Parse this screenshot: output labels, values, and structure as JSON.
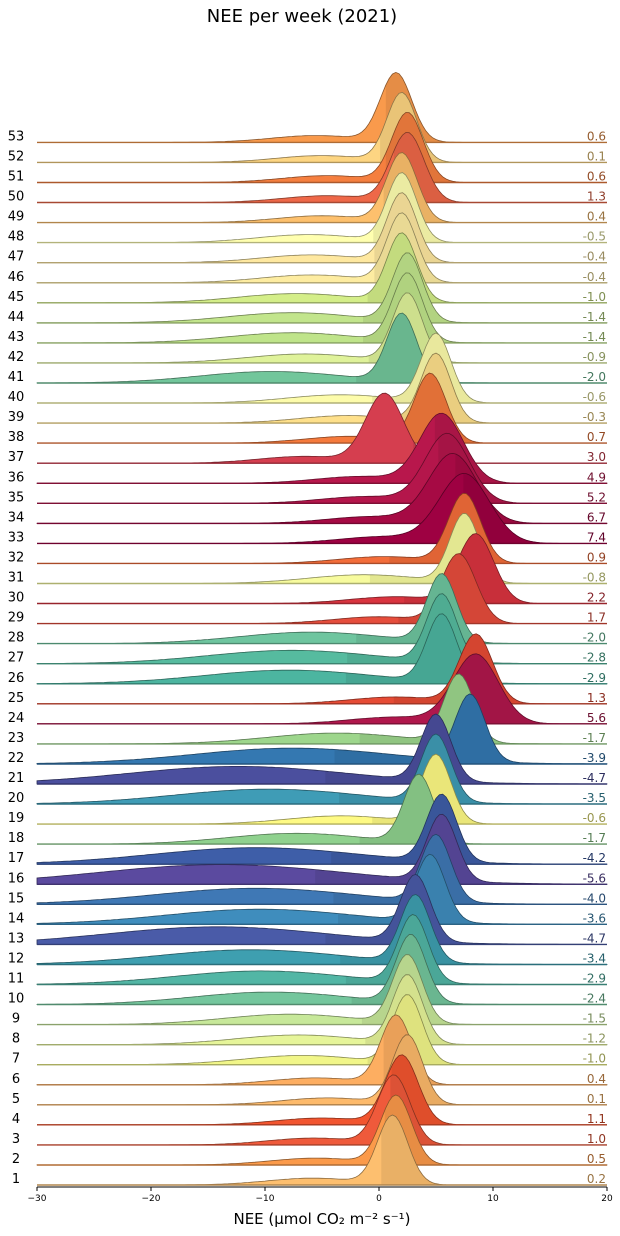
{
  "chart_data": {
    "type": "ridgeline",
    "title": "NEE per week (2021)",
    "xlabel": "NEE (μmol CO₂ m⁻² s⁻¹)",
    "xlim": [
      -30,
      20
    ],
    "xticks": [
      -30,
      -20,
      -10,
      0,
      10,
      20
    ],
    "grid": false,
    "series": [
      {
        "week": 1,
        "mean": 0.2,
        "peak": 1.2,
        "color": "#fdbf6f"
      },
      {
        "week": 2,
        "mean": 0.5,
        "peak": 1.5,
        "color": "#fb9a4a"
      },
      {
        "week": 3,
        "mean": 1.0,
        "peak": 1.3,
        "color": "#ef5a3b"
      },
      {
        "week": 4,
        "mean": 1.1,
        "peak": 2.0,
        "color": "#f2552f"
      },
      {
        "week": 5,
        "mean": 0.1,
        "peak": 2.5,
        "color": "#fdba6b"
      },
      {
        "week": 6,
        "mean": 0.4,
        "peak": 1.5,
        "color": "#fdae61"
      },
      {
        "week": 7,
        "mean": -1.0,
        "peak": 2.5,
        "color": "#f1f689"
      },
      {
        "week": 8,
        "mean": -1.2,
        "peak": 2.5,
        "color": "#e6f59a"
      },
      {
        "week": 9,
        "mean": -1.5,
        "peak": 2.5,
        "color": "#c7e89a"
      },
      {
        "week": 10,
        "mean": -2.4,
        "peak": 2.8,
        "color": "#74c69d"
      },
      {
        "week": 11,
        "mean": -2.9,
        "peak": 3.0,
        "color": "#52b6a5"
      },
      {
        "week": 12,
        "mean": -3.4,
        "peak": 3.2,
        "color": "#3e9fb0"
      },
      {
        "week": 13,
        "mean": -4.7,
        "peak": 3.2,
        "color": "#4a5ba8"
      },
      {
        "week": 14,
        "mean": -3.6,
        "peak": 4.5,
        "color": "#3f8dbd"
      },
      {
        "week": 15,
        "mean": -4.0,
        "peak": 5.0,
        "color": "#3f78b5"
      },
      {
        "week": 16,
        "mean": -5.6,
        "peak": 5.5,
        "color": "#5b4a9f"
      },
      {
        "week": 17,
        "mean": -4.2,
        "peak": 5.5,
        "color": "#3e5ea8"
      },
      {
        "week": 18,
        "mean": -1.7,
        "peak": 3.5,
        "color": "#8fd18e"
      },
      {
        "week": 19,
        "mean": -0.6,
        "peak": 5.0,
        "color": "#fefa84"
      },
      {
        "week": 20,
        "mean": -3.5,
        "peak": 5.0,
        "color": "#3f9cb6"
      },
      {
        "week": 21,
        "mean": -4.7,
        "peak": 5.0,
        "color": "#4b4f9e"
      },
      {
        "week": 22,
        "mean": -3.9,
        "peak": 8.0,
        "color": "#3478b1"
      },
      {
        "week": 23,
        "mean": -1.7,
        "peak": 7.0,
        "color": "#9dd68c"
      },
      {
        "week": 24,
        "mean": 5.6,
        "peak": 8.5,
        "color": "#b0174c"
      },
      {
        "week": 25,
        "mean": 1.3,
        "peak": 8.5,
        "color": "#e64b35"
      },
      {
        "week": 26,
        "mean": -2.9,
        "peak": 5.5,
        "color": "#4cb5a0"
      },
      {
        "week": 27,
        "mean": -2.8,
        "peak": 5.5,
        "color": "#56bb9f"
      },
      {
        "week": 28,
        "mean": -2.0,
        "peak": 5.5,
        "color": "#6ec59f"
      },
      {
        "week": 29,
        "mean": 1.7,
        "peak": 7.0,
        "color": "#e64d3c"
      },
      {
        "week": 30,
        "mean": 2.2,
        "peak": 8.5,
        "color": "#d9343f"
      },
      {
        "week": 31,
        "mean": -0.8,
        "peak": 7.5,
        "color": "#f7fb9e"
      },
      {
        "week": 32,
        "mean": 0.9,
        "peak": 7.5,
        "color": "#f36d3a"
      },
      {
        "week": 33,
        "mean": 7.4,
        "peak": 7.5,
        "color": "#9e0142"
      },
      {
        "week": 34,
        "mean": 6.7,
        "peak": 6.5,
        "color": "#a60a44"
      },
      {
        "week": 35,
        "mean": 5.2,
        "peak": 6.0,
        "color": "#b4164b"
      },
      {
        "week": 36,
        "mean": 4.9,
        "peak": 5.5,
        "color": "#b8174c"
      },
      {
        "week": 37,
        "mean": 3.0,
        "peak": 0.5,
        "color": "#d53e4f"
      },
      {
        "week": 38,
        "mean": 0.7,
        "peak": 4.5,
        "color": "#f57a3c"
      },
      {
        "week": 39,
        "mean": -0.3,
        "peak": 5.0,
        "color": "#fee08b"
      },
      {
        "week": 40,
        "mean": -0.6,
        "peak": 5.0,
        "color": "#fdfcab"
      },
      {
        "week": 41,
        "mean": -2.0,
        "peak": 2.0,
        "color": "#72c69b"
      },
      {
        "week": 42,
        "mean": -0.9,
        "peak": 2.5,
        "color": "#dff29a"
      },
      {
        "week": 43,
        "mean": -1.4,
        "peak": 2.5,
        "color": "#bfe48a"
      },
      {
        "week": 44,
        "mean": -1.4,
        "peak": 2.5,
        "color": "#c2e58c"
      },
      {
        "week": 45,
        "mean": -1.0,
        "peak": 2.0,
        "color": "#d4ee89"
      },
      {
        "week": 46,
        "mean": -0.4,
        "peak": 2.0,
        "color": "#fdeca1"
      },
      {
        "week": 47,
        "mean": -0.4,
        "peak": 2.0,
        "color": "#fee8a0"
      },
      {
        "week": 48,
        "mean": -0.5,
        "peak": 2.0,
        "color": "#ffffb0"
      },
      {
        "week": 49,
        "mean": 0.4,
        "peak": 2.0,
        "color": "#fdc06d"
      },
      {
        "week": 50,
        "mean": 1.3,
        "peak": 2.5,
        "color": "#ee6848"
      },
      {
        "week": 51,
        "mean": 0.6,
        "peak": 2.5,
        "color": "#f57f3f"
      },
      {
        "week": 52,
        "mean": 0.1,
        "peak": 2.0,
        "color": "#fdd582"
      },
      {
        "week": 53,
        "mean": 0.6,
        "peak": 1.5,
        "color": "#f99a4c"
      }
    ]
  }
}
